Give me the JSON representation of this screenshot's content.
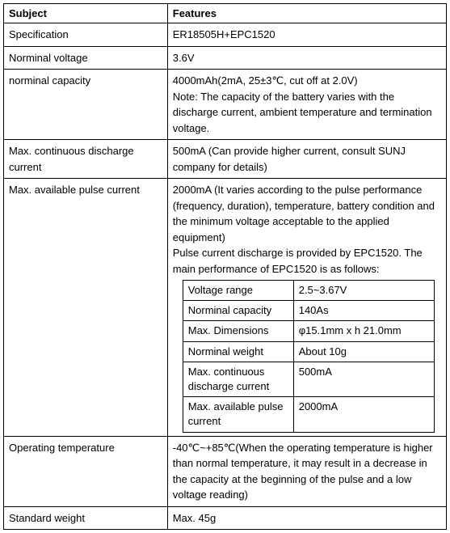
{
  "headers": {
    "subject": "Subject",
    "features": "Features"
  },
  "rows": {
    "spec": {
      "subject": "Specification",
      "feature": "ER18505H+EPC1520"
    },
    "nomVoltage": {
      "subject": "Norminal voltage",
      "feature": "3.6V"
    },
    "nomCapacity": {
      "subject": "norminal capacity",
      "feature": "4000mAh(2mA, 25±3℃, cut off at 2.0V)\nNote: The capacity of the battery varies with the discharge current, ambient temperature and termination voltage."
    },
    "maxCont": {
      "subject": "Max. continuous discharge current",
      "feature": "500mA (Can provide higher current, consult SUNJ company for details)"
    },
    "maxPulse": {
      "subject": "Max. available pulse current",
      "featurePre": "2000mA (It varies according to the pulse performance (frequency, duration), temperature, battery condition and the minimum voltage acceptable to the applied equipment)\nPulse current discharge is provided by EPC1520. The main performance of EPC1520 is as follows:"
    },
    "opTemp": {
      "subject": "Operating temperature",
      "feature": "-40℃~+85℃(When the operating temperature is higher than normal temperature, it may result in a decrease in the capacity at the beginning of the pulse and a low voltage reading)"
    },
    "stdWeight": {
      "subject": "Standard weight",
      "feature": "Max. 45g"
    }
  },
  "inner": {
    "voltageRange": {
      "label": "Voltage range",
      "value": "2.5~3.67V"
    },
    "nomCap": {
      "label": "Norminal capacity",
      "value": "140As"
    },
    "maxDim": {
      "label": "Max. Dimensions",
      "value": "φ15.1mm x h 21.0mm"
    },
    "nomWeight": {
      "label": "Norminal weight",
      "value": "About 10g"
    },
    "maxCont": {
      "label": "Max. continuous discharge current",
      "value": "500mA"
    },
    "maxPulse": {
      "label": "Max. available pulse current",
      "value": "2000mA"
    }
  },
  "style": {
    "font_family": "Arial, sans-serif",
    "font_size_pt": 10,
    "text_color": "#000000",
    "border_color": "#000000",
    "background_color": "#ffffff",
    "col_widths_pct": [
      37,
      63
    ],
    "inner_col_widths_pct": [
      44,
      56
    ]
  }
}
